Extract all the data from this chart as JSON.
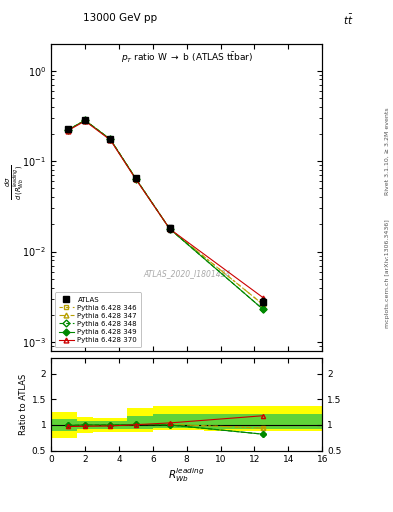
{
  "title_top": "13000 GeV pp",
  "title_top_right": "tt",
  "plot_title": "p_{T} ratio W #rightarrow b (ATLAS t#bar{t}bar)",
  "xlabel": "R_{Wb}^{leading}",
  "ylabel_ratio": "Ratio to ATLAS",
  "right_label_top": "Rivet 3.1.10, ≥ 3.2M events",
  "right_label_bottom": "mcplots.cern.ch [arXiv:1306.3436]",
  "watermark": "ATLAS_2020_I1801434",
  "x_data": [
    1.0,
    2.0,
    3.5,
    5.0,
    7.0,
    12.5
  ],
  "atlas_y": [
    0.225,
    0.285,
    0.175,
    0.065,
    0.018,
    0.0028
  ],
  "atlas_yerr": [
    0.012,
    0.012,
    0.008,
    0.004,
    0.0015,
    0.00025
  ],
  "pythia346_y": [
    0.22,
    0.283,
    0.174,
    0.064,
    0.0178,
    0.0026
  ],
  "pythia347_y": [
    0.22,
    0.283,
    0.174,
    0.064,
    0.0178,
    0.0026
  ],
  "pythia348_y": [
    0.222,
    0.283,
    0.174,
    0.064,
    0.0178,
    0.0023
  ],
  "pythia349_y": [
    0.222,
    0.283,
    0.174,
    0.064,
    0.0178,
    0.0023
  ],
  "pythia370_y": [
    0.218,
    0.278,
    0.171,
    0.063,
    0.0178,
    0.0031
  ],
  "ratio_x": [
    1.0,
    2.0,
    3.5,
    5.0,
    7.0,
    12.5
  ],
  "ratio_pythia346": [
    0.975,
    0.99,
    1.0,
    1.01,
    1.01,
    0.94
  ],
  "ratio_pythia347": [
    0.975,
    0.99,
    1.0,
    1.01,
    1.01,
    0.94
  ],
  "ratio_pythia348": [
    0.99,
    1.0,
    1.0,
    1.01,
    1.0,
    0.82
  ],
  "ratio_pythia349": [
    0.99,
    1.0,
    1.0,
    1.01,
    1.0,
    0.82
  ],
  "ratio_pythia370": [
    0.97,
    0.975,
    0.98,
    1.005,
    1.04,
    1.18
  ],
  "band_x_edges": [
    0.0,
    1.5,
    2.5,
    4.5,
    6.0,
    9.0,
    16.0
  ],
  "band_yellow_low": [
    0.75,
    0.85,
    0.87,
    0.87,
    0.9,
    0.88
  ],
  "band_yellow_high": [
    1.25,
    1.15,
    1.13,
    1.33,
    1.38,
    1.38
  ],
  "band_green_low": [
    0.88,
    0.92,
    0.93,
    0.93,
    0.95,
    0.93
  ],
  "band_green_high": [
    1.12,
    1.08,
    1.07,
    1.18,
    1.22,
    1.22
  ],
  "ylim_main": [
    0.0008,
    2.0
  ],
  "xlim": [
    0,
    16
  ],
  "ylim_ratio": [
    0.5,
    2.3
  ],
  "yticks_ratio": [
    0.5,
    1.0,
    1.5,
    2.0
  ],
  "color_atlas": "#000000",
  "color_346": "#b8a000",
  "color_347": "#b8a000",
  "color_348": "#008800",
  "color_349": "#008800",
  "color_370": "#cc0000",
  "color_band_yellow": "#ffff00",
  "color_band_green": "#44cc44"
}
